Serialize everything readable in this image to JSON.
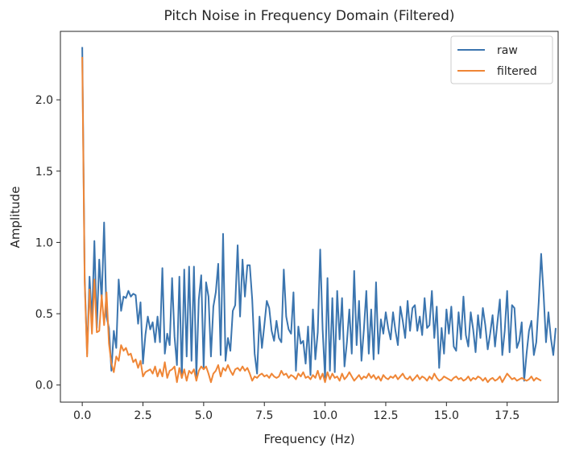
{
  "chart_data": {
    "type": "line",
    "title": "Pitch Noise in Frequency Domain (Filtered)",
    "xlabel": "Frequency (Hz)",
    "ylabel": "Amplitude",
    "xlim": [
      -0.9,
      19.6
    ],
    "ylim": [
      -0.12,
      2.48
    ],
    "xticks": [
      0.0,
      2.5,
      5.0,
      7.5,
      10.0,
      12.5,
      15.0,
      17.5
    ],
    "xtick_labels": [
      "0.0",
      "2.5",
      "5.0",
      "7.5",
      "10.0",
      "12.5",
      "15.0",
      "17.5"
    ],
    "yticks": [
      0.0,
      0.5,
      1.0,
      1.5,
      2.0
    ],
    "ytick_labels": [
      "0.0",
      "0.5",
      "1.0",
      "1.5",
      "2.0"
    ],
    "grid": false,
    "legend": "top-right",
    "x_step": 0.1,
    "series": [
      {
        "name": "raw",
        "color": "#3b75af",
        "values": [
          2.37,
          0.75,
          0.22,
          0.76,
          0.45,
          1.01,
          0.4,
          0.88,
          0.59,
          1.14,
          0.48,
          0.4,
          0.1,
          0.38,
          0.26,
          0.74,
          0.52,
          0.62,
          0.61,
          0.66,
          0.62,
          0.64,
          0.63,
          0.43,
          0.58,
          0.15,
          0.35,
          0.48,
          0.39,
          0.44,
          0.3,
          0.48,
          0.3,
          0.82,
          0.22,
          0.36,
          0.28,
          0.75,
          0.34,
          0.14,
          0.76,
          0.05,
          0.81,
          0.2,
          0.83,
          0.17,
          0.83,
          0.06,
          0.6,
          0.77,
          0.12,
          0.72,
          0.62,
          0.2,
          0.55,
          0.65,
          0.85,
          0.21,
          1.06,
          0.17,
          0.33,
          0.24,
          0.52,
          0.56,
          0.98,
          0.48,
          0.88,
          0.62,
          0.84,
          0.84,
          0.6,
          0.22,
          0.08,
          0.48,
          0.26,
          0.42,
          0.59,
          0.54,
          0.38,
          0.31,
          0.45,
          0.33,
          0.3,
          0.81,
          0.48,
          0.39,
          0.36,
          0.65,
          0.1,
          0.41,
          0.29,
          0.31,
          0.15,
          0.41,
          0.07,
          0.53,
          0.18,
          0.37,
          0.95,
          0.39,
          0.05,
          0.75,
          0.1,
          0.61,
          0.09,
          0.66,
          0.32,
          0.61,
          0.13,
          0.3,
          0.53,
          0.22,
          0.8,
          0.28,
          0.59,
          0.17,
          0.39,
          0.66,
          0.22,
          0.53,
          0.18,
          0.72,
          0.22,
          0.46,
          0.36,
          0.51,
          0.4,
          0.32,
          0.51,
          0.38,
          0.28,
          0.55,
          0.45,
          0.33,
          0.59,
          0.38,
          0.54,
          0.56,
          0.38,
          0.48,
          0.35,
          0.61,
          0.4,
          0.42,
          0.66,
          0.33,
          0.55,
          0.12,
          0.4,
          0.22,
          0.53,
          0.36,
          0.55,
          0.27,
          0.24,
          0.51,
          0.32,
          0.62,
          0.35,
          0.27,
          0.51,
          0.39,
          0.23,
          0.49,
          0.33,
          0.54,
          0.42,
          0.25,
          0.36,
          0.49,
          0.27,
          0.44,
          0.6,
          0.21,
          0.38,
          0.66,
          0.23,
          0.56,
          0.54,
          0.26,
          0.31,
          0.44,
          0.03,
          0.22,
          0.38,
          0.45,
          0.21,
          0.3,
          0.58,
          0.92,
          0.64,
          0.3,
          0.51,
          0.33,
          0.21,
          0.4
        ]
      },
      {
        "name": "filtered",
        "color": "#ef8636",
        "values": [
          2.3,
          0.72,
          0.2,
          0.67,
          0.36,
          0.74,
          0.37,
          0.38,
          0.63,
          0.42,
          0.65,
          0.29,
          0.15,
          0.09,
          0.2,
          0.17,
          0.28,
          0.24,
          0.26,
          0.21,
          0.22,
          0.16,
          0.18,
          0.12,
          0.17,
          0.06,
          0.09,
          0.1,
          0.11,
          0.08,
          0.13,
          0.06,
          0.11,
          0.06,
          0.16,
          0.05,
          0.1,
          0.11,
          0.13,
          0.02,
          0.12,
          0.05,
          0.11,
          0.03,
          0.1,
          0.08,
          0.11,
          0.03,
          0.1,
          0.13,
          0.11,
          0.13,
          0.08,
          0.02,
          0.08,
          0.1,
          0.14,
          0.06,
          0.12,
          0.1,
          0.14,
          0.1,
          0.07,
          0.11,
          0.12,
          0.1,
          0.13,
          0.1,
          0.12,
          0.08,
          0.03,
          0.06,
          0.05,
          0.07,
          0.08,
          0.06,
          0.07,
          0.05,
          0.08,
          0.06,
          0.05,
          0.06,
          0.1,
          0.07,
          0.08,
          0.05,
          0.07,
          0.06,
          0.04,
          0.08,
          0.06,
          0.09,
          0.05,
          0.06,
          0.04,
          0.07,
          0.05,
          0.1,
          0.04,
          0.08,
          0.02,
          0.09,
          0.04,
          0.08,
          0.05,
          0.06,
          0.03,
          0.08,
          0.04,
          0.06,
          0.09,
          0.06,
          0.03,
          0.05,
          0.07,
          0.04,
          0.06,
          0.05,
          0.08,
          0.05,
          0.07,
          0.04,
          0.06,
          0.03,
          0.07,
          0.05,
          0.04,
          0.06,
          0.05,
          0.07,
          0.04,
          0.06,
          0.08,
          0.05,
          0.04,
          0.06,
          0.03,
          0.05,
          0.07,
          0.04,
          0.06,
          0.05,
          0.03,
          0.06,
          0.04,
          0.08,
          0.05,
          0.03,
          0.04,
          0.06,
          0.05,
          0.04,
          0.03,
          0.05,
          0.06,
          0.04,
          0.05,
          0.03,
          0.04,
          0.06,
          0.03,
          0.05,
          0.04,
          0.06,
          0.05,
          0.03,
          0.05,
          0.02,
          0.04,
          0.05,
          0.03,
          0.04,
          0.06,
          0.02,
          0.05,
          0.08,
          0.06,
          0.04,
          0.05,
          0.03,
          0.04,
          0.05,
          0.04,
          0.03,
          0.04,
          0.06,
          0.03,
          0.05,
          0.04,
          0.03
        ]
      }
    ]
  }
}
